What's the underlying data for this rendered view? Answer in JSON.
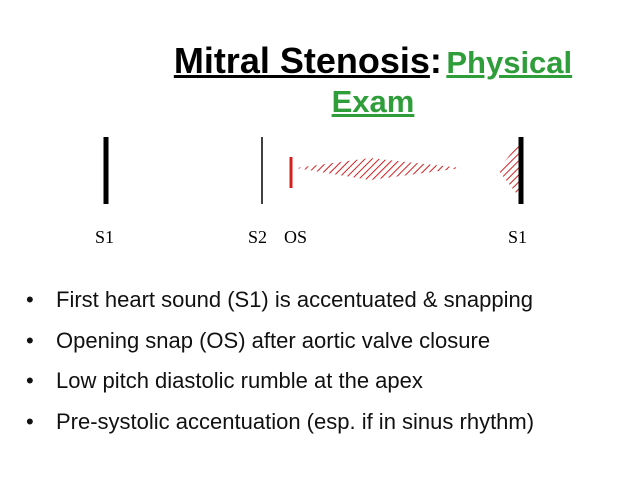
{
  "title": {
    "main": "Mitral Stenosis",
    "colon": ":",
    "sub_line1": "Physical",
    "sub_line2": "Exam"
  },
  "diagram": {
    "labels": [
      "S1",
      "S2",
      "OS",
      "S1"
    ],
    "colors": {
      "sound_lines": "#000000",
      "opening_snap": "#d62020",
      "murmur": "#d62020"
    }
  },
  "bullets": [
    "First heart sound (S1) is accentuated & snapping",
    "Opening snap (OS) after aortic valve closure",
    "Low pitch diastolic rumble at the apex",
    "Pre-systolic accentuation (esp. if in sinus rhythm)"
  ]
}
